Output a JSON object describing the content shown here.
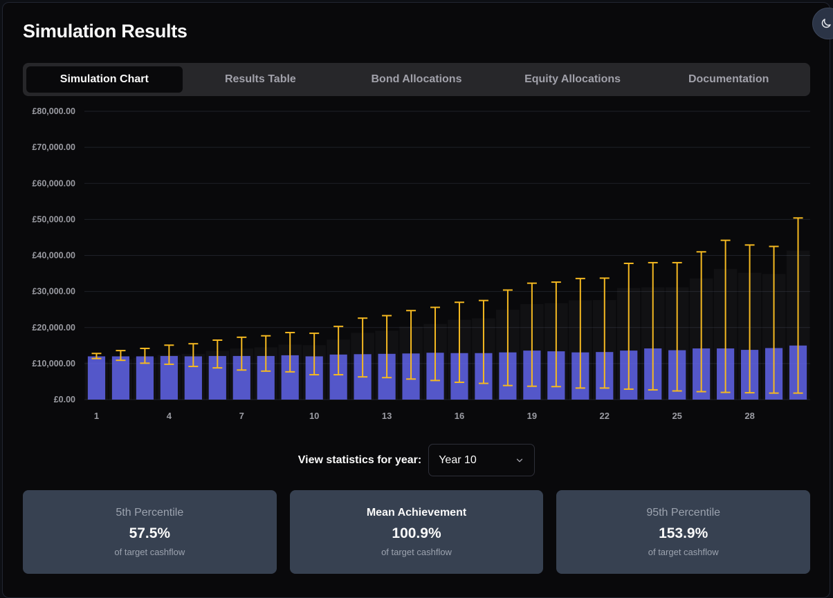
{
  "page": {
    "title": "Simulation Results"
  },
  "theme_toggle": {
    "icon": "moon-icon"
  },
  "tabs": [
    {
      "label": "Simulation Chart",
      "active": true
    },
    {
      "label": "Results Table",
      "active": false
    },
    {
      "label": "Bond Allocations",
      "active": false
    },
    {
      "label": "Equity Allocations",
      "active": false
    },
    {
      "label": "Documentation",
      "active": false
    }
  ],
  "chart_data": {
    "type": "bar",
    "title": "",
    "xlabel": "",
    "ylabel": "",
    "ylim": [
      0,
      80000
    ],
    "y_ticks": [
      "£0.00",
      "£10,000.00",
      "£20,000.00",
      "£30,000.00",
      "£40,000.00",
      "£50,000.00",
      "£60,000.00",
      "£70,000.00",
      "£80,000.00"
    ],
    "x_ticks": [
      "1",
      "4",
      "7",
      "10",
      "13",
      "16",
      "19",
      "22",
      "25",
      "28"
    ],
    "years": [
      1,
      2,
      3,
      4,
      5,
      6,
      7,
      8,
      9,
      10,
      11,
      12,
      13,
      14,
      15,
      16,
      17,
      18,
      19,
      20,
      21,
      22,
      23,
      24,
      25,
      26,
      27,
      28,
      29,
      30
    ],
    "series": [
      {
        "name": "Mean",
        "values": [
          12000,
          12000,
          12000,
          12100,
          12000,
          12100,
          12100,
          12100,
          12300,
          12000,
          12500,
          12600,
          12700,
          12800,
          13000,
          12900,
          12900,
          13100,
          13600,
          13400,
          13100,
          13200,
          13600,
          14200,
          13700,
          14200,
          14200,
          13800,
          14300,
          15000
        ]
      },
      {
        "name": "5th Percentile",
        "values": [
          11400,
          10900,
          10100,
          9800,
          9200,
          8800,
          8200,
          7900,
          7700,
          6900,
          6900,
          6300,
          6100,
          5700,
          5300,
          4800,
          4500,
          3900,
          3700,
          3600,
          3200,
          3200,
          2900,
          2700,
          2400,
          2200,
          2000,
          1900,
          1800,
          1800
        ]
      },
      {
        "name": "95th Percentile",
        "values": [
          12800,
          13600,
          14200,
          15100,
          15500,
          16500,
          17300,
          17700,
          18600,
          18400,
          20300,
          22600,
          23300,
          24700,
          25600,
          27000,
          27500,
          30400,
          32300,
          32600,
          33600,
          33700,
          37800,
          38000,
          38000,
          41000,
          44200,
          42900,
          42500,
          50400
        ]
      }
    ],
    "colors": {
      "bar": "#6366f1",
      "error": "#f5b921",
      "grid": "#1f2128",
      "tick": "#9b9ca3"
    }
  },
  "year_select": {
    "label": "View statistics for year:",
    "value": "Year 10"
  },
  "cards": [
    {
      "label": "5th Percentile",
      "value": "57.5%",
      "sub": "of target cashflow"
    },
    {
      "label": "Mean Achievement",
      "value": "100.9%",
      "sub": "of target cashflow"
    },
    {
      "label": "95th Percentile",
      "value": "153.9%",
      "sub": "of target cashflow"
    }
  ]
}
